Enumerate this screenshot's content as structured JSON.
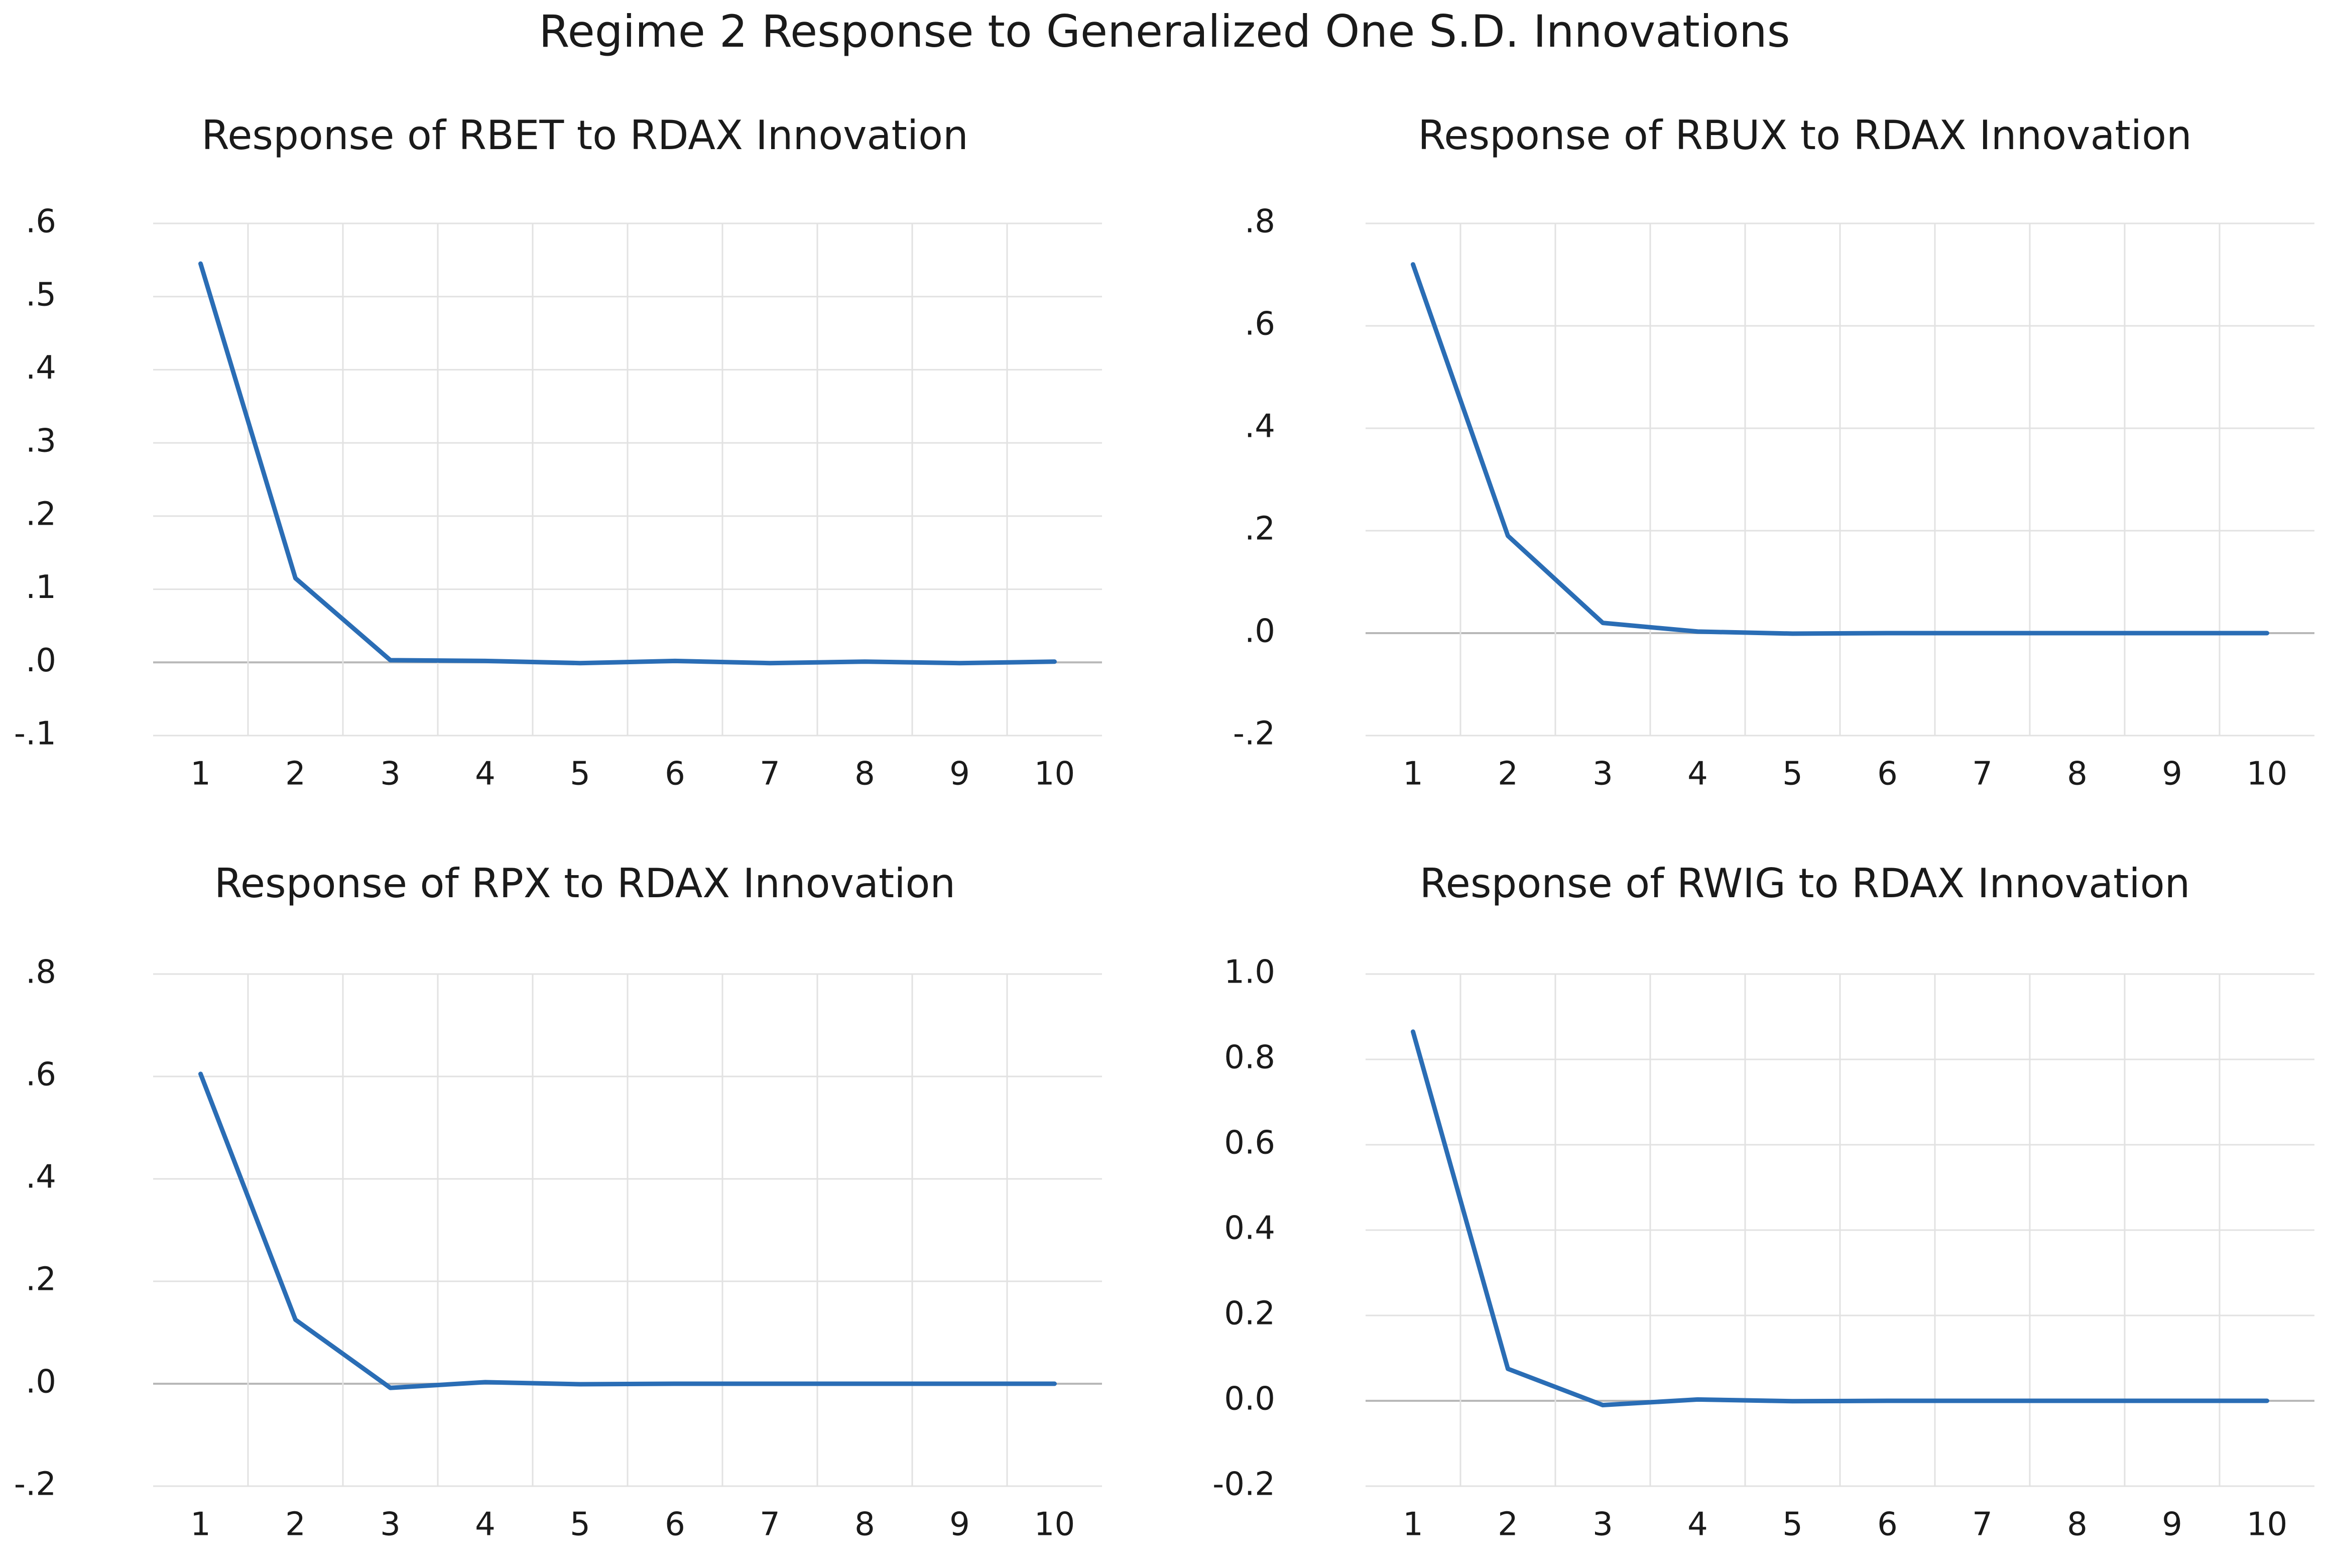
{
  "title": "Regime 2 Response to Generalized One S.D. Innovations",
  "colors": {
    "line": "#2a6db5",
    "grid": "#e2e2e2",
    "zero_line": "#b8b8b8"
  },
  "chart_data": [
    {
      "type": "line",
      "title": "Response of RBET to RDAX Innovation",
      "x": [
        1,
        2,
        3,
        4,
        5,
        6,
        7,
        8,
        9,
        10
      ],
      "x_tick_labels": [
        "1",
        "2",
        "3",
        "4",
        "5",
        "6",
        "7",
        "8",
        "9",
        "10"
      ],
      "values": [
        0.545,
        0.115,
        0.003,
        0.002,
        -0.001,
        0.002,
        -0.001,
        0.001,
        -0.001,
        0.001
      ],
      "ylim": [
        -0.1,
        0.6
      ],
      "y_ticks": [
        -0.1,
        0.0,
        0.1,
        0.2,
        0.3,
        0.4,
        0.5,
        0.6
      ],
      "y_tick_labels": [
        "-.1",
        ".0",
        ".1",
        ".2",
        ".3",
        ".4",
        ".5",
        ".6"
      ],
      "xlabel": "",
      "ylabel": "",
      "grid": true
    },
    {
      "type": "line",
      "title": "Response of RBUX to RDAX Innovation",
      "x": [
        1,
        2,
        3,
        4,
        5,
        6,
        7,
        8,
        9,
        10
      ],
      "x_tick_labels": [
        "1",
        "2",
        "3",
        "4",
        "5",
        "6",
        "7",
        "8",
        "9",
        "10"
      ],
      "values": [
        0.72,
        0.19,
        0.02,
        0.003,
        -0.001,
        0.0,
        0.0,
        0.0,
        0.0,
        0.0
      ],
      "ylim": [
        -0.2,
        0.8
      ],
      "y_ticks": [
        -0.2,
        0.0,
        0.2,
        0.4,
        0.6,
        0.8
      ],
      "y_tick_labels": [
        "-.2",
        ".0",
        ".2",
        ".4",
        ".6",
        ".8"
      ],
      "xlabel": "",
      "ylabel": "",
      "grid": true
    },
    {
      "type": "line",
      "title": "Response of RPX to RDAX Innovation",
      "x": [
        1,
        2,
        3,
        4,
        5,
        6,
        7,
        8,
        9,
        10
      ],
      "x_tick_labels": [
        "1",
        "2",
        "3",
        "4",
        "5",
        "6",
        "7",
        "8",
        "9",
        "10"
      ],
      "values": [
        0.605,
        0.125,
        -0.008,
        0.003,
        -0.001,
        0.0,
        0.0,
        0.0,
        0.0,
        0.0
      ],
      "ylim": [
        -0.2,
        0.8
      ],
      "y_ticks": [
        -0.2,
        0.0,
        0.2,
        0.4,
        0.6,
        0.8
      ],
      "y_tick_labels": [
        "-.2",
        ".0",
        ".2",
        ".4",
        ".6",
        ".8"
      ],
      "xlabel": "",
      "ylabel": "",
      "grid": true
    },
    {
      "type": "line",
      "title": "Response of RWIG to RDAX Innovation",
      "x": [
        1,
        2,
        3,
        4,
        5,
        6,
        7,
        8,
        9,
        10
      ],
      "x_tick_labels": [
        "1",
        "2",
        "3",
        "4",
        "5",
        "6",
        "7",
        "8",
        "9",
        "10"
      ],
      "values": [
        0.865,
        0.075,
        -0.01,
        0.003,
        -0.001,
        0.0,
        0.0,
        0.0,
        0.0,
        0.0
      ],
      "ylim": [
        -0.2,
        1.0
      ],
      "y_ticks": [
        -0.2,
        0.0,
        0.2,
        0.4,
        0.6,
        0.8,
        1.0
      ],
      "y_tick_labels": [
        "-0.2",
        "0.0",
        "0.2",
        "0.4",
        "0.6",
        "0.8",
        "1.0"
      ],
      "xlabel": "",
      "ylabel": "",
      "grid": true
    }
  ]
}
